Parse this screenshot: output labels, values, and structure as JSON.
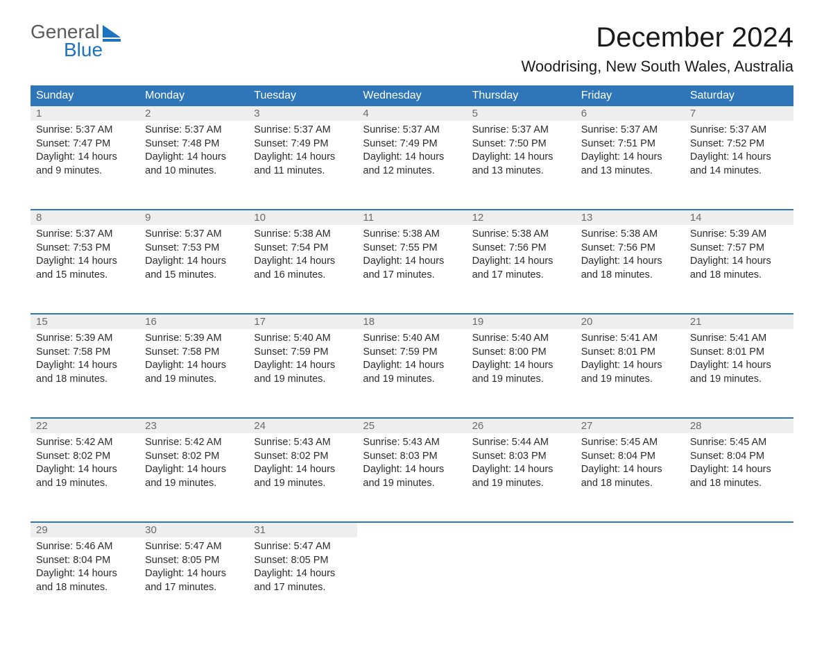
{
  "brand": {
    "word1": "General",
    "word2": "Blue",
    "word1_color": "#5a5a5a",
    "word2_color": "#1e73be",
    "sail_color": "#1e73be"
  },
  "title": "December 2024",
  "location": "Woodrising, New South Wales, Australia",
  "styling": {
    "header_bg": "#2f76b9",
    "header_text": "#ffffff",
    "daynum_bg": "#eeeeee",
    "daynum_color": "#6a6a6a",
    "body_text": "#2b2b2b",
    "week_border": "#2f76b9",
    "page_bg": "#ffffff",
    "title_fontsize": 40,
    "location_fontsize": 22,
    "header_fontsize": 16,
    "cell_fontsize": 14.5
  },
  "day_headers": [
    "Sunday",
    "Monday",
    "Tuesday",
    "Wednesday",
    "Thursday",
    "Friday",
    "Saturday"
  ],
  "weeks": [
    [
      {
        "n": "1",
        "sunrise": "Sunrise: 5:37 AM",
        "sunset": "Sunset: 7:47 PM",
        "daylight": "Daylight: 14 hours and 9 minutes."
      },
      {
        "n": "2",
        "sunrise": "Sunrise: 5:37 AM",
        "sunset": "Sunset: 7:48 PM",
        "daylight": "Daylight: 14 hours and 10 minutes."
      },
      {
        "n": "3",
        "sunrise": "Sunrise: 5:37 AM",
        "sunset": "Sunset: 7:49 PM",
        "daylight": "Daylight: 14 hours and 11 minutes."
      },
      {
        "n": "4",
        "sunrise": "Sunrise: 5:37 AM",
        "sunset": "Sunset: 7:49 PM",
        "daylight": "Daylight: 14 hours and 12 minutes."
      },
      {
        "n": "5",
        "sunrise": "Sunrise: 5:37 AM",
        "sunset": "Sunset: 7:50 PM",
        "daylight": "Daylight: 14 hours and 13 minutes."
      },
      {
        "n": "6",
        "sunrise": "Sunrise: 5:37 AM",
        "sunset": "Sunset: 7:51 PM",
        "daylight": "Daylight: 14 hours and 13 minutes."
      },
      {
        "n": "7",
        "sunrise": "Sunrise: 5:37 AM",
        "sunset": "Sunset: 7:52 PM",
        "daylight": "Daylight: 14 hours and 14 minutes."
      }
    ],
    [
      {
        "n": "8",
        "sunrise": "Sunrise: 5:37 AM",
        "sunset": "Sunset: 7:53 PM",
        "daylight": "Daylight: 14 hours and 15 minutes."
      },
      {
        "n": "9",
        "sunrise": "Sunrise: 5:37 AM",
        "sunset": "Sunset: 7:53 PM",
        "daylight": "Daylight: 14 hours and 15 minutes."
      },
      {
        "n": "10",
        "sunrise": "Sunrise: 5:38 AM",
        "sunset": "Sunset: 7:54 PM",
        "daylight": "Daylight: 14 hours and 16 minutes."
      },
      {
        "n": "11",
        "sunrise": "Sunrise: 5:38 AM",
        "sunset": "Sunset: 7:55 PM",
        "daylight": "Daylight: 14 hours and 17 minutes."
      },
      {
        "n": "12",
        "sunrise": "Sunrise: 5:38 AM",
        "sunset": "Sunset: 7:56 PM",
        "daylight": "Daylight: 14 hours and 17 minutes."
      },
      {
        "n": "13",
        "sunrise": "Sunrise: 5:38 AM",
        "sunset": "Sunset: 7:56 PM",
        "daylight": "Daylight: 14 hours and 18 minutes."
      },
      {
        "n": "14",
        "sunrise": "Sunrise: 5:39 AM",
        "sunset": "Sunset: 7:57 PM",
        "daylight": "Daylight: 14 hours and 18 minutes."
      }
    ],
    [
      {
        "n": "15",
        "sunrise": "Sunrise: 5:39 AM",
        "sunset": "Sunset: 7:58 PM",
        "daylight": "Daylight: 14 hours and 18 minutes."
      },
      {
        "n": "16",
        "sunrise": "Sunrise: 5:39 AM",
        "sunset": "Sunset: 7:58 PM",
        "daylight": "Daylight: 14 hours and 19 minutes."
      },
      {
        "n": "17",
        "sunrise": "Sunrise: 5:40 AM",
        "sunset": "Sunset: 7:59 PM",
        "daylight": "Daylight: 14 hours and 19 minutes."
      },
      {
        "n": "18",
        "sunrise": "Sunrise: 5:40 AM",
        "sunset": "Sunset: 7:59 PM",
        "daylight": "Daylight: 14 hours and 19 minutes."
      },
      {
        "n": "19",
        "sunrise": "Sunrise: 5:40 AM",
        "sunset": "Sunset: 8:00 PM",
        "daylight": "Daylight: 14 hours and 19 minutes."
      },
      {
        "n": "20",
        "sunrise": "Sunrise: 5:41 AM",
        "sunset": "Sunset: 8:01 PM",
        "daylight": "Daylight: 14 hours and 19 minutes."
      },
      {
        "n": "21",
        "sunrise": "Sunrise: 5:41 AM",
        "sunset": "Sunset: 8:01 PM",
        "daylight": "Daylight: 14 hours and 19 minutes."
      }
    ],
    [
      {
        "n": "22",
        "sunrise": "Sunrise: 5:42 AM",
        "sunset": "Sunset: 8:02 PM",
        "daylight": "Daylight: 14 hours and 19 minutes."
      },
      {
        "n": "23",
        "sunrise": "Sunrise: 5:42 AM",
        "sunset": "Sunset: 8:02 PM",
        "daylight": "Daylight: 14 hours and 19 minutes."
      },
      {
        "n": "24",
        "sunrise": "Sunrise: 5:43 AM",
        "sunset": "Sunset: 8:02 PM",
        "daylight": "Daylight: 14 hours and 19 minutes."
      },
      {
        "n": "25",
        "sunrise": "Sunrise: 5:43 AM",
        "sunset": "Sunset: 8:03 PM",
        "daylight": "Daylight: 14 hours and 19 minutes."
      },
      {
        "n": "26",
        "sunrise": "Sunrise: 5:44 AM",
        "sunset": "Sunset: 8:03 PM",
        "daylight": "Daylight: 14 hours and 19 minutes."
      },
      {
        "n": "27",
        "sunrise": "Sunrise: 5:45 AM",
        "sunset": "Sunset: 8:04 PM",
        "daylight": "Daylight: 14 hours and 18 minutes."
      },
      {
        "n": "28",
        "sunrise": "Sunrise: 5:45 AM",
        "sunset": "Sunset: 8:04 PM",
        "daylight": "Daylight: 14 hours and 18 minutes."
      }
    ],
    [
      {
        "n": "29",
        "sunrise": "Sunrise: 5:46 AM",
        "sunset": "Sunset: 8:04 PM",
        "daylight": "Daylight: 14 hours and 18 minutes."
      },
      {
        "n": "30",
        "sunrise": "Sunrise: 5:47 AM",
        "sunset": "Sunset: 8:05 PM",
        "daylight": "Daylight: 14 hours and 17 minutes."
      },
      {
        "n": "31",
        "sunrise": "Sunrise: 5:47 AM",
        "sunset": "Sunset: 8:05 PM",
        "daylight": "Daylight: 14 hours and 17 minutes."
      },
      null,
      null,
      null,
      null
    ]
  ]
}
